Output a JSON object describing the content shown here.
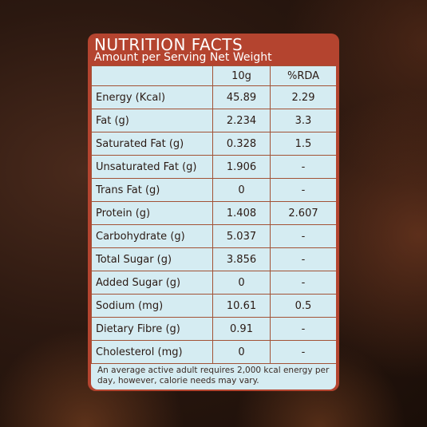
{
  "header": {
    "title": "NUTRITION FACTS",
    "subtitle": "Amount per Serving Net Weight"
  },
  "table": {
    "columns": [
      "",
      "10g",
      "%RDA"
    ],
    "rows": [
      {
        "nutrient": "Energy (Kcal)",
        "amount": "45.89",
        "rda": "2.29"
      },
      {
        "nutrient": "Fat (g)",
        "amount": "2.234",
        "rda": "3.3"
      },
      {
        "nutrient": "Saturated Fat (g)",
        "amount": "0.328",
        "rda": "1.5"
      },
      {
        "nutrient": "Unsaturated Fat (g)",
        "amount": "1.906",
        "rda": "-"
      },
      {
        "nutrient": "Trans Fat (g)",
        "amount": "0",
        "rda": "-"
      },
      {
        "nutrient": "Protein (g)",
        "amount": "1.408",
        "rda": "2.607"
      },
      {
        "nutrient": "Carbohydrate (g)",
        "amount": "5.037",
        "rda": "-"
      },
      {
        "nutrient": "Total Sugar (g)",
        "amount": "3.856",
        "rda": "-"
      },
      {
        "nutrient": "Added Sugar (g)",
        "amount": "0",
        "rda": "-"
      },
      {
        "nutrient": "Sodium (mg)",
        "amount": "10.61",
        "rda": "0.5"
      },
      {
        "nutrient": "Dietary Fibre (g)",
        "amount": "0.91",
        "rda": "-"
      },
      {
        "nutrient": "Cholesterol (mg)",
        "amount": "0",
        "rda": "-"
      }
    ]
  },
  "footnote": "An average active adult requires 2,000 kcal energy per day, however, calorie needs may vary.",
  "colors": {
    "header_bg": "#b4442f",
    "table_bg": "#d5ecf2",
    "border": "#a25236"
  }
}
